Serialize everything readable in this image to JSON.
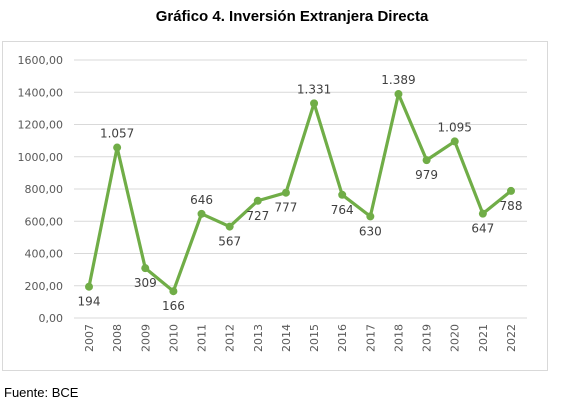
{
  "title": "Gráfico 4. Inversión Extranjera Directa",
  "source": "Fuente: BCE",
  "chart_data": {
    "type": "line",
    "title": "Gráfico 4. Inversión Extranjera Directa",
    "xlabel": "",
    "ylabel": "",
    "categories": [
      "2007",
      "2008",
      "2009",
      "2010",
      "2011",
      "2012",
      "2013",
      "2014",
      "2015",
      "2016",
      "2017",
      "2018",
      "2019",
      "2020",
      "2021",
      "2022"
    ],
    "values": [
      194,
      1057,
      309,
      166,
      646,
      567,
      727,
      777,
      1331,
      764,
      630,
      1389,
      979,
      1095,
      647,
      788
    ],
    "data_labels": [
      "194",
      "1.057",
      "309",
      "166",
      "646",
      "567",
      "727",
      "777",
      "1.331",
      "764",
      "630",
      "1.389",
      "979",
      "1.095",
      "647",
      "788"
    ],
    "label_positions": [
      "below",
      "above",
      "below",
      "below",
      "above",
      "below",
      "below",
      "below",
      "above",
      "below",
      "below",
      "above",
      "below",
      "above",
      "below",
      "below"
    ],
    "ylim": [
      0,
      1600
    ],
    "yticks": [
      0,
      200,
      400,
      600,
      800,
      1000,
      1200,
      1400,
      1600
    ],
    "ytick_labels": [
      "0,00",
      "200,00",
      "400,00",
      "600,00",
      "800,00",
      "1000,00",
      "1200,00",
      "1400,00",
      "1600,00"
    ],
    "grid": true,
    "legend": "none",
    "line_color": "#70ad47",
    "grid_color": "#d9d9d9",
    "text_color": "#595959"
  }
}
